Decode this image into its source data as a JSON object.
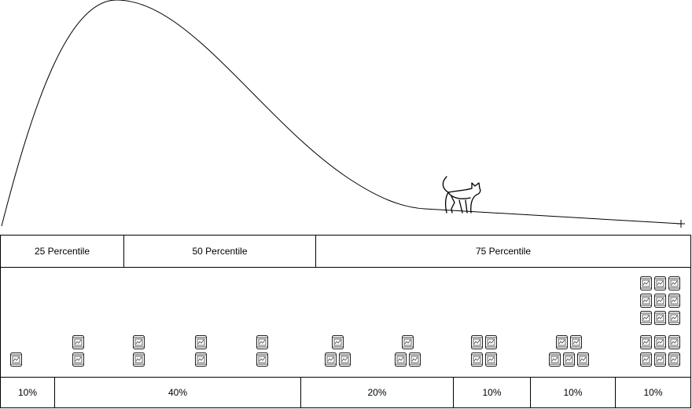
{
  "diagram": {
    "mascot_icon": "cat-icon",
    "can_icon": "cat-food-can-icon",
    "percentiles": [
      {
        "label": "25 Percentile"
      },
      {
        "label": "50 Percentile"
      },
      {
        "label": "75 Percentile"
      }
    ],
    "shares": [
      {
        "label": "10%"
      },
      {
        "label": "40%"
      },
      {
        "label": "20%"
      },
      {
        "label": "10%"
      },
      {
        "label": "10%"
      },
      {
        "label": "10%"
      }
    ],
    "can_columns": [
      1,
      2,
      2,
      2,
      2,
      3,
      3,
      4,
      5,
      15
    ]
  }
}
